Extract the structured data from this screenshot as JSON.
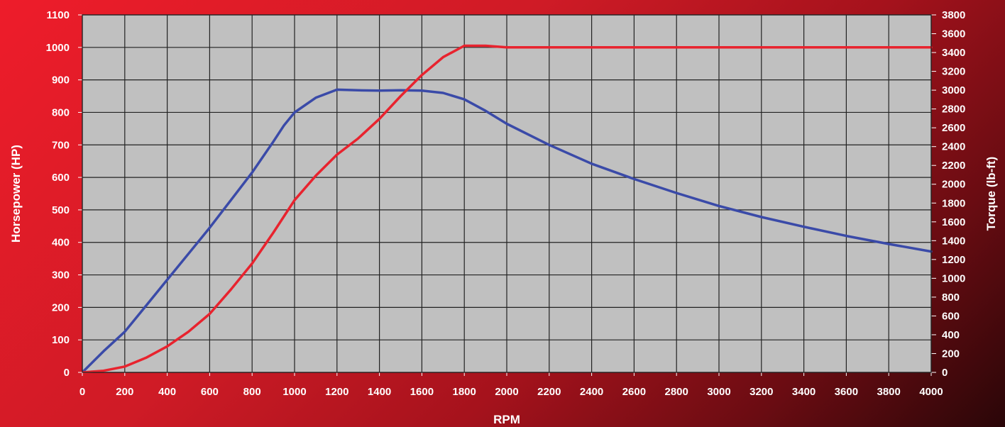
{
  "chart_data": {
    "type": "line",
    "title": "",
    "xlabel": "RPM",
    "ylabel": "Horsepower (HP)",
    "y2label": "Torque (lb-ft)",
    "xlim": [
      0,
      4000
    ],
    "ylim": [
      0,
      1100
    ],
    "y2lim": [
      0,
      3800
    ],
    "x_ticks": [
      0,
      200,
      400,
      600,
      800,
      1000,
      1200,
      1400,
      1600,
      1800,
      2000,
      2200,
      2400,
      2600,
      2800,
      3000,
      3200,
      3400,
      3600,
      3800,
      4000
    ],
    "y_ticks": [
      0,
      100,
      200,
      300,
      400,
      500,
      600,
      700,
      800,
      900,
      1000,
      1100
    ],
    "y2_ticks": [
      0,
      200,
      400,
      600,
      800,
      1000,
      1200,
      1400,
      1600,
      1800,
      2000,
      2200,
      2400,
      2600,
      2800,
      3000,
      3200,
      3400,
      3600,
      3800
    ],
    "grid": true,
    "legend": "none",
    "plot_background": "#c0c0c0",
    "series": [
      {
        "color": "#3a4aa8",
        "axis": "left",
        "points": [
          [
            0,
            0
          ],
          [
            100,
            65
          ],
          [
            200,
            125
          ],
          [
            300,
            205
          ],
          [
            400,
            285
          ],
          [
            500,
            365
          ],
          [
            600,
            445
          ],
          [
            700,
            530
          ],
          [
            800,
            615
          ],
          [
            900,
            710
          ],
          [
            950,
            760
          ],
          [
            1000,
            800
          ],
          [
            1100,
            845
          ],
          [
            1200,
            870
          ],
          [
            1300,
            868
          ],
          [
            1400,
            867
          ],
          [
            1500,
            868
          ],
          [
            1600,
            867
          ],
          [
            1700,
            860
          ],
          [
            1800,
            840
          ],
          [
            1900,
            805
          ],
          [
            2000,
            765
          ],
          [
            2200,
            700
          ],
          [
            2400,
            642
          ],
          [
            2600,
            595
          ],
          [
            2800,
            552
          ],
          [
            3000,
            512
          ],
          [
            3200,
            478
          ],
          [
            3400,
            448
          ],
          [
            3600,
            420
          ],
          [
            3800,
            395
          ],
          [
            4000,
            372
          ]
        ]
      },
      {
        "color": "#e8232e",
        "axis": "left",
        "points": [
          [
            0,
            0
          ],
          [
            100,
            5
          ],
          [
            200,
            18
          ],
          [
            300,
            45
          ],
          [
            400,
            80
          ],
          [
            500,
            125
          ],
          [
            600,
            180
          ],
          [
            700,
            255
          ],
          [
            800,
            335
          ],
          [
            900,
            430
          ],
          [
            1000,
            530
          ],
          [
            1100,
            605
          ],
          [
            1200,
            670
          ],
          [
            1300,
            720
          ],
          [
            1400,
            780
          ],
          [
            1500,
            850
          ],
          [
            1600,
            915
          ],
          [
            1700,
            970
          ],
          [
            1800,
            1005
          ],
          [
            1900,
            1005
          ],
          [
            2000,
            1000
          ],
          [
            2500,
            1000
          ],
          [
            3000,
            1000
          ],
          [
            3500,
            1000
          ],
          [
            4000,
            1000
          ]
        ]
      }
    ]
  }
}
